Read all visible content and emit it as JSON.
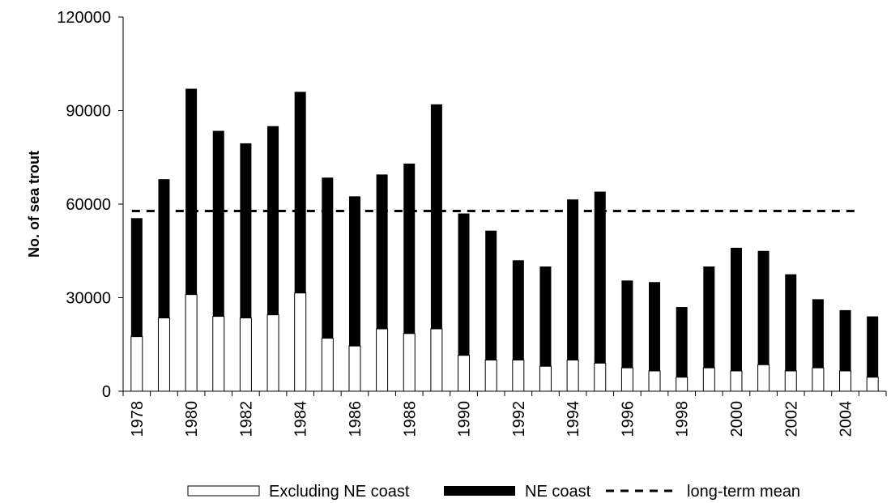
{
  "chart_data": {
    "type": "bar",
    "stacked": true,
    "ylabel": "No. of sea trout",
    "xlabel": "",
    "ylim": [
      0,
      120000
    ],
    "yticks": [
      0,
      30000,
      60000,
      90000,
      120000
    ],
    "xtick_labels": [
      "1978",
      "1980",
      "1982",
      "1984",
      "1986",
      "1988",
      "1990",
      "1992",
      "1994",
      "1996",
      "1998",
      "2000",
      "2002",
      "2004"
    ],
    "categories": [
      "1978",
      "1979",
      "1980",
      "1981",
      "1982",
      "1983",
      "1984",
      "1985",
      "1986",
      "1987",
      "1988",
      "1989",
      "1990",
      "1991",
      "1992",
      "1993",
      "1994",
      "1995",
      "1996",
      "1997",
      "1998",
      "1999",
      "2000",
      "2001",
      "2002",
      "2003",
      "2004",
      "2005"
    ],
    "series": [
      {
        "name": "Excluding NE coast",
        "color": "#ffffff",
        "values": [
          17500,
          23500,
          31000,
          24000,
          23500,
          24500,
          31500,
          17000,
          14500,
          20000,
          18500,
          20000,
          11500,
          10000,
          10000,
          8000,
          10000,
          9000,
          7500,
          6500,
          4500,
          7500,
          6500,
          8500,
          6500,
          7500,
          6500,
          4500
        ]
      },
      {
        "name": "NE coast",
        "color": "#000000",
        "values": [
          38000,
          44500,
          66000,
          59500,
          56000,
          60500,
          64500,
          51500,
          48000,
          49500,
          54500,
          72000,
          45500,
          41500,
          32000,
          32000,
          51500,
          55000,
          28000,
          28500,
          22500,
          32500,
          39500,
          36500,
          31000,
          22000,
          19500,
          19500
        ]
      }
    ],
    "reference_line": {
      "name": "long-term mean",
      "value": 57800,
      "style": "dashed",
      "color": "#000000"
    },
    "legend": {
      "placement": "bottom-center",
      "items": [
        {
          "label": "Excluding NE coast",
          "marker": "white-box"
        },
        {
          "label": "NE coast",
          "marker": "black-box"
        },
        {
          "label": "long-term mean",
          "marker": "dashed-line"
        }
      ]
    }
  }
}
